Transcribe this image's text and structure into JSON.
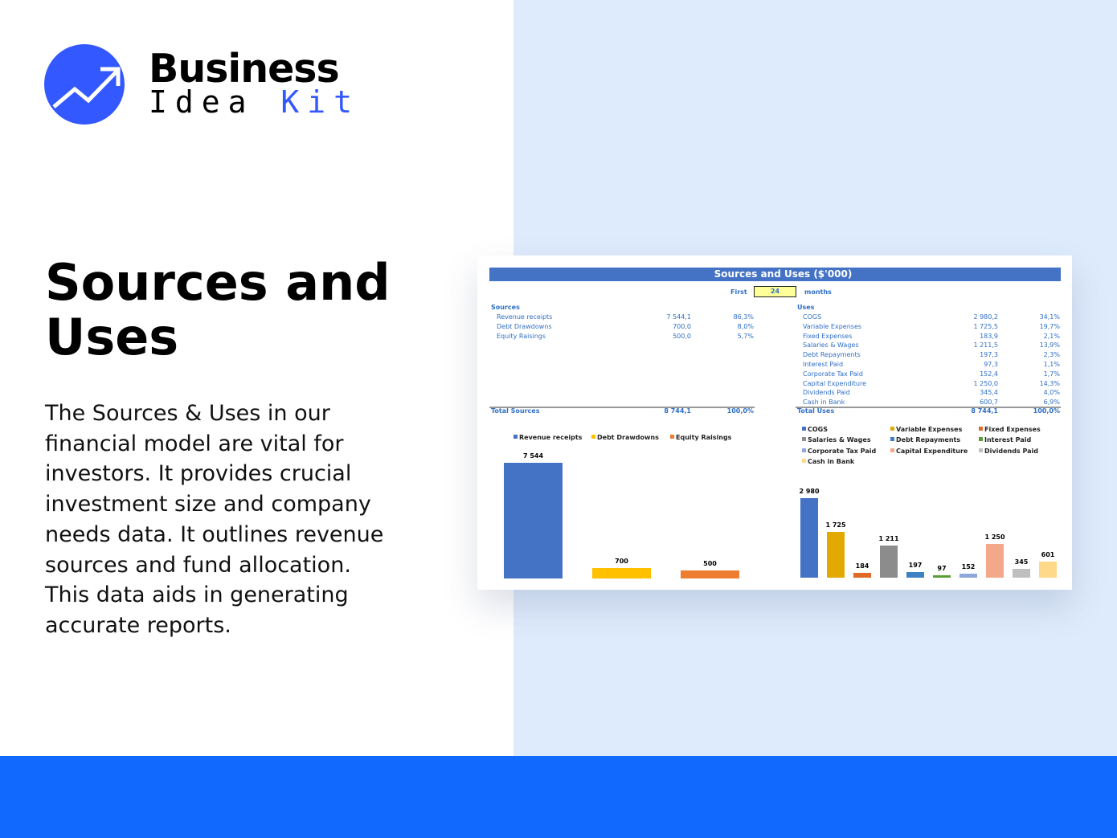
{
  "brand": {
    "line1": "Business",
    "line2a": "Idea",
    "line2b": "Kit",
    "accent": "#3358ff"
  },
  "headline": "Sources and Uses",
  "description": "The Sources & Uses in our financial model are vital for investors. It provides crucial investment size and company needs data. It outlines revenue sources and fund allocation. This data aids in generating accurate reports.",
  "sheet": {
    "title": "Sources and Uses ($'000)",
    "first_label": "First",
    "months_value": "24",
    "months_label": "months",
    "sources_header": "Sources",
    "sources": [
      {
        "label": "Revenue receipts",
        "value": "7 544,1",
        "pct": "86,3%"
      },
      {
        "label": "Debt Drawdowns",
        "value": "700,0",
        "pct": "8,0%"
      },
      {
        "label": "Equity Raisings",
        "value": "500,0",
        "pct": "5,7%"
      }
    ],
    "sources_total": {
      "label": "Total Sources",
      "value": "8 744,1",
      "pct": "100,0%"
    },
    "uses_header": "Uses",
    "uses": [
      {
        "label": "COGS",
        "value": "2 980,2",
        "pct": "34,1%"
      },
      {
        "label": "Variable Expenses",
        "value": "1 725,5",
        "pct": "19,7%"
      },
      {
        "label": "Fixed Expenses",
        "value": "183,9",
        "pct": "2,1%"
      },
      {
        "label": "Salaries & Wages",
        "value": "1 211,5",
        "pct": "13,9%"
      },
      {
        "label": "Debt Repayments",
        "value": "197,3",
        "pct": "2,3%"
      },
      {
        "label": "Interest Paid",
        "value": "97,3",
        "pct": "1,1%"
      },
      {
        "label": "Corporate Tax Paid",
        "value": "152,4",
        "pct": "1,7%"
      },
      {
        "label": "Capital Expenditure",
        "value": "1 250,0",
        "pct": "14,3%"
      },
      {
        "label": "Dividends Paid",
        "value": "345,4",
        "pct": "4,0%"
      },
      {
        "label": "Cash in Bank",
        "value": "600,7",
        "pct": "6,9%"
      }
    ],
    "uses_total": {
      "label": "Total Uses",
      "value": "8 744,1",
      "pct": "100,0%"
    }
  },
  "chart_data": [
    {
      "type": "bar",
      "legend_placement": "top",
      "grid": false,
      "categories": [
        "Revenue receipts",
        "Debt Drawdowns",
        "Equity Raisings"
      ],
      "values": [
        7544,
        700,
        500
      ],
      "labels": [
        "7 544",
        "700",
        "500"
      ],
      "colors": [
        "#4472c4",
        "#ffc000",
        "#ed7d31"
      ]
    },
    {
      "type": "bar",
      "legend_placement": "top",
      "grid": false,
      "categories": [
        "COGS",
        "Variable Expenses",
        "Fixed Expenses",
        "Salaries & Wages",
        "Debt Repayments",
        "Interest Paid",
        "Corporate Tax Paid",
        "Capital Expenditure",
        "Dividends Paid",
        "Cash in Bank"
      ],
      "values": [
        2980,
        1725,
        184,
        1211,
        197,
        97,
        152,
        1250,
        345,
        601
      ],
      "labels": [
        "2 980",
        "1 725",
        "184",
        "1 211",
        "197",
        "97",
        "152",
        "1 250",
        "345",
        "601"
      ],
      "colors": [
        "#4472c4",
        "#e2aa00",
        "#e06a25",
        "#8c8c8c",
        "#3d80c4",
        "#5a9e35",
        "#8fa8dc",
        "#f4a88a",
        "#bfbfbf",
        "#ffd98a"
      ]
    }
  ]
}
